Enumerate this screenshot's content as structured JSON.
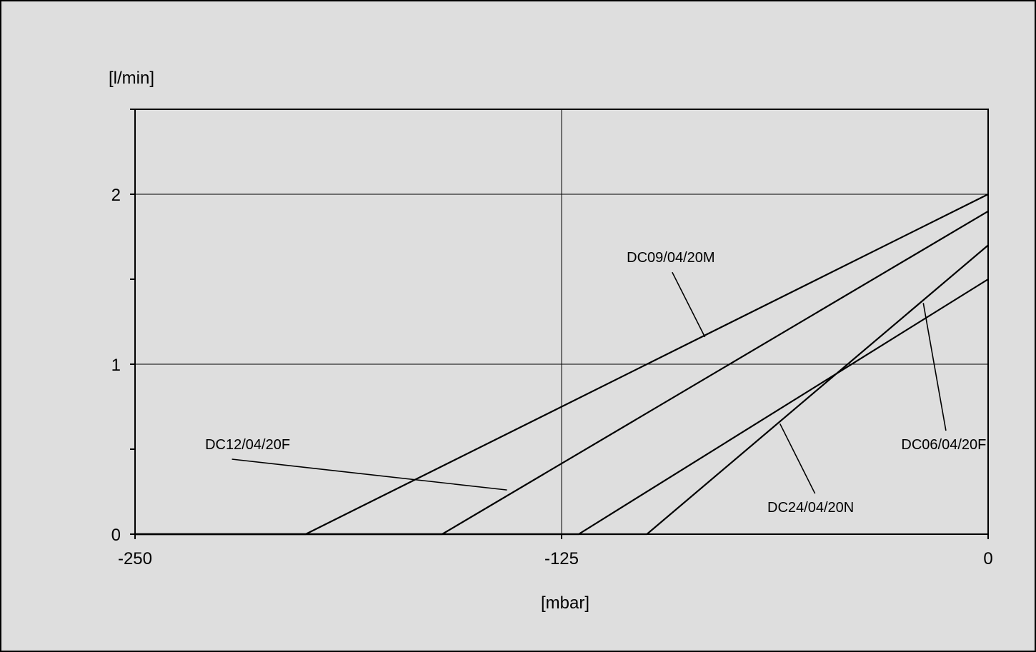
{
  "chart_data": {
    "type": "line",
    "xlabel": "[mbar]",
    "ylabel": "[l/min]",
    "xlim": [
      -250,
      0
    ],
    "ylim": [
      0,
      2.5
    ],
    "x_ticks": [
      -250,
      -125,
      0
    ],
    "x_tick_labels": [
      "-250",
      "-125",
      "0"
    ],
    "y_ticks": [
      0,
      1,
      2
    ],
    "y_tick_labels": [
      "0",
      "1",
      "2"
    ],
    "y_minor_ticks": [
      0.5,
      1.5,
      2.5
    ],
    "grid": {
      "x": [
        -125
      ],
      "y": [
        1,
        2
      ]
    },
    "colors": {
      "background": "#dedede",
      "frame": "#000000",
      "series": "#000000",
      "grid": "#000000"
    },
    "series": [
      {
        "name": "DC09/04/20M",
        "x": [
          -250,
          -200,
          0
        ],
        "y": [
          0,
          0,
          2.0
        ]
      },
      {
        "name": "DC12/04/20F",
        "x": [
          -250,
          -160,
          0
        ],
        "y": [
          0,
          0,
          1.9
        ]
      },
      {
        "name": "DC24/04/20N",
        "x": [
          -250,
          -120,
          0
        ],
        "y": [
          0,
          0,
          1.5
        ]
      },
      {
        "name": "DC06/04/20F",
        "x": [
          -250,
          -100,
          0
        ],
        "y": [
          0,
          0,
          1.7
        ]
      }
    ],
    "annotations": [
      {
        "series": "DC09/04/20M",
        "text": "DC09/04/20M",
        "text_at": [
          -93,
          1.6
        ],
        "point": [
          -83,
          1.16
        ]
      },
      {
        "series": "DC12/04/20F",
        "text": "DC12/04/20F",
        "text_at": [
          -217,
          0.5
        ],
        "point": [
          -141,
          0.26
        ]
      },
      {
        "series": "DC24/04/20N",
        "text": "DC24/04/20N",
        "text_at": [
          -52,
          0.13
        ],
        "point": [
          -61,
          0.65
        ]
      },
      {
        "series": "DC06/04/20F",
        "text": "DC06/04/20F",
        "text_at": [
          -13,
          0.5
        ],
        "point": [
          -19,
          1.36
        ]
      }
    ]
  }
}
